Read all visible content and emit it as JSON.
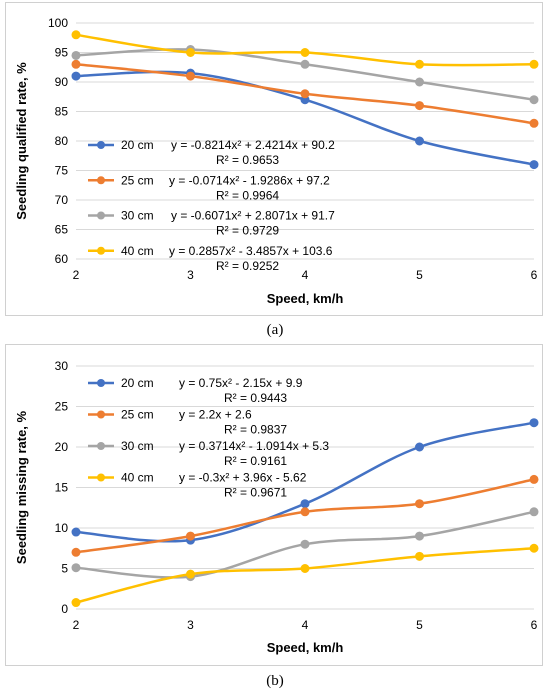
{
  "captions": [
    "(a)",
    "(b)"
  ],
  "chart_data": [
    {
      "type": "line",
      "xlabel": "Speed, km/h",
      "ylabel": "Seedling qualified rate, %",
      "x": [
        2,
        3,
        4,
        5,
        6
      ],
      "xlim": [
        2,
        6
      ],
      "ylim": [
        60,
        100
      ],
      "yticks": [
        60,
        65,
        70,
        75,
        80,
        85,
        90,
        95,
        100
      ],
      "grid": true,
      "legend": "inside, middle-left",
      "series": [
        {
          "name": "20 cm",
          "color": "#4472C4",
          "values": [
            91,
            91.5,
            87,
            80,
            76
          ],
          "equation": "y = -0.8214x² + 2.4214x + 90.2",
          "r2": "R² = 0.9653"
        },
        {
          "name": "25 cm",
          "color": "#ED7D31",
          "values": [
            93,
            91,
            88,
            86,
            83
          ],
          "equation": "y = -0.0714x² - 1.9286x + 97.2",
          "r2": "R² = 0.9964"
        },
        {
          "name": "30 cm",
          "color": "#A5A5A5",
          "values": [
            94.5,
            95.5,
            93,
            90,
            87
          ],
          "equation": "y = -0.6071x² + 2.8071x + 91.7",
          "r2": "R² = 0.9729"
        },
        {
          "name": "40 cm",
          "color": "#FFC000",
          "values": [
            98,
            95,
            95,
            93,
            93
          ],
          "equation": "y = 0.2857x² - 3.4857x + 103.6",
          "r2": "R² = 0.9252"
        }
      ]
    },
    {
      "type": "line",
      "xlabel": "Speed, km/h",
      "ylabel": "Seedling missing rate, %",
      "x": [
        2,
        3,
        4,
        5,
        6
      ],
      "xlim": [
        2,
        6
      ],
      "ylim": [
        0,
        30
      ],
      "yticks": [
        0,
        5,
        10,
        15,
        20,
        25,
        30
      ],
      "grid": true,
      "legend": "inside, top-left",
      "series": [
        {
          "name": "20 cm",
          "color": "#4472C4",
          "values": [
            9.5,
            8.5,
            13,
            20,
            23
          ],
          "equation": "y = 0.75x² - 2.15x + 9.9",
          "r2": "R² = 0.9443"
        },
        {
          "name": "25 cm",
          "color": "#ED7D31",
          "values": [
            7,
            9,
            12,
            13,
            16
          ],
          "equation": "y = 2.2x + 2.6",
          "r2": "R² = 0.9837"
        },
        {
          "name": "30 cm",
          "color": "#A5A5A5",
          "values": [
            5.1,
            4,
            8,
            9,
            12
          ],
          "equation": "y = 0.3714x² - 1.0914x + 5.3",
          "r2": "R² = 0.9161"
        },
        {
          "name": "40 cm",
          "color": "#FFC000",
          "values": [
            0.8,
            4.3,
            5,
            6.5,
            7.5
          ],
          "equation": "y = -0.3x² + 3.96x - 5.62",
          "r2": "R² = 0.9671"
        }
      ]
    }
  ]
}
